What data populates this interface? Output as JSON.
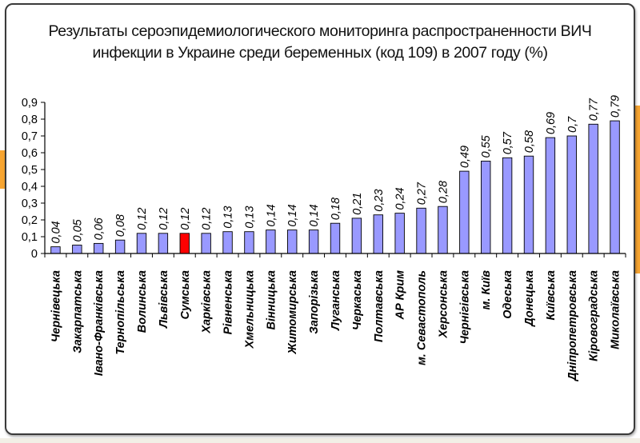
{
  "chart_data": {
    "type": "bar",
    "title_line1": "Результаты сероэпидемиологического мониторинга распространенности ВИЧ",
    "title_line2": "инфекции  в Украине среди беременных (код 109) в 2007 году (%)",
    "xlabel": "",
    "ylabel": "",
    "ylim": [
      0,
      0.9
    ],
    "yticks": [
      "0",
      "0,1",
      "0,2",
      "0,3",
      "0,4",
      "0,5",
      "0,6",
      "0,7",
      "0,8",
      "0,9"
    ],
    "grid": false,
    "legend": "none",
    "categories": [
      "Чернівецька",
      "Закарпатська",
      "Івано-Франківська",
      "Тернопільська",
      "Волинська",
      "Львівська",
      "Сумська",
      "Харківська",
      "Рівненська",
      "Хмельницька",
      "Вінницька",
      "Житомирська",
      "Запорізька",
      "Луганська",
      "Черкаська",
      "Полтавська",
      "АР Крим",
      "м. Севастополь",
      "Херсонська",
      "Чернігівська",
      "м. Київ",
      "Одеська",
      "Донецька",
      "Київська",
      "Дніпропетровська",
      "Кіровоградська",
      "Миколаївська"
    ],
    "values": [
      0.04,
      0.05,
      0.06,
      0.08,
      0.12,
      0.12,
      0.12,
      0.12,
      0.13,
      0.13,
      0.14,
      0.14,
      0.14,
      0.18,
      0.21,
      0.23,
      0.24,
      0.27,
      0.28,
      0.49,
      0.55,
      0.57,
      0.58,
      0.69,
      0.7,
      0.77,
      0.79
    ],
    "labels": [
      "0,04",
      "0,05",
      "0,06",
      "0,08",
      "0,12",
      "0,12",
      "0,12",
      "0,12",
      "0,13",
      "0,13",
      "0,14",
      "0,14",
      "0,14",
      "0,18",
      "0,21",
      "0,23",
      "0,24",
      "0,27",
      "0,28",
      "0,49",
      "0,55",
      "0,57",
      "0,58",
      "0,69",
      "0,7",
      "0,77",
      "0,79"
    ],
    "bar_color": "#9999ff",
    "highlight_index": 6,
    "highlight_color": "#ff0000"
  }
}
